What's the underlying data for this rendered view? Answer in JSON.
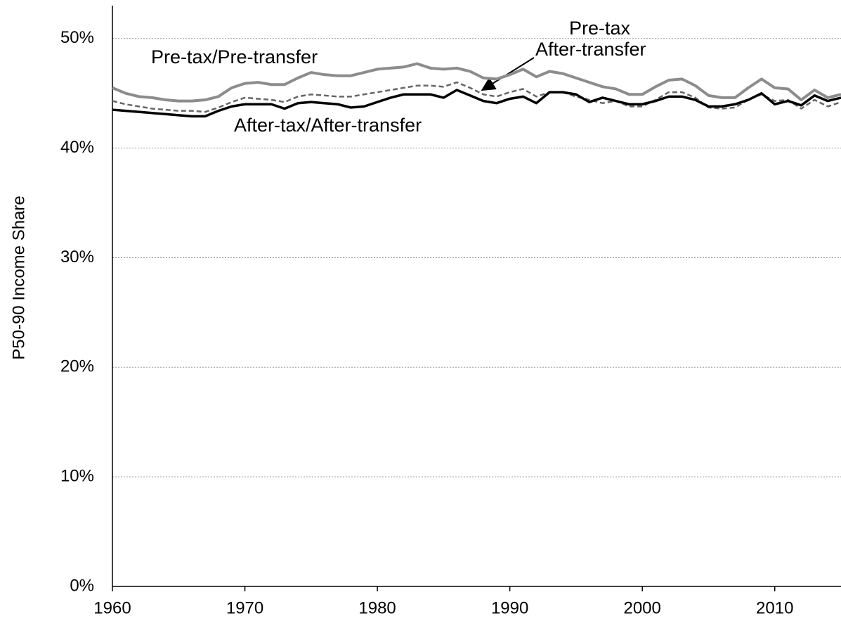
{
  "chart_data": {
    "type": "line",
    "y_label": "P50-90 Income Share",
    "x": [
      1960,
      1961,
      1962,
      1963,
      1964,
      1965,
      1966,
      1967,
      1968,
      1969,
      1970,
      1971,
      1972,
      1973,
      1974,
      1975,
      1976,
      1977,
      1978,
      1979,
      1980,
      1981,
      1982,
      1983,
      1984,
      1985,
      1986,
      1987,
      1988,
      1989,
      1990,
      1991,
      1992,
      1993,
      1994,
      1995,
      1996,
      1997,
      1998,
      1999,
      2000,
      2001,
      2002,
      2003,
      2004,
      2005,
      2006,
      2007,
      2008,
      2009,
      2010,
      2011,
      2012,
      2013,
      2014,
      2015
    ],
    "series": [
      {
        "color": "#8c8c8c",
        "style": "solid",
        "width": 4,
        "values": [
          45.5,
          45.0,
          44.7,
          44.6,
          44.4,
          44.3,
          44.3,
          44.4,
          44.7,
          45.5,
          45.9,
          46.0,
          45.8,
          45.8,
          46.4,
          46.9,
          46.7,
          46.6,
          46.6,
          46.9,
          47.2,
          47.3,
          47.4,
          47.7,
          47.3,
          47.2,
          47.3,
          47.0,
          46.4,
          46.3,
          46.7,
          47.2,
          46.5,
          47.0,
          46.8,
          46.4,
          46.0,
          45.6,
          45.4,
          44.9,
          44.9,
          45.6,
          46.2,
          46.3,
          45.7,
          44.8,
          44.6,
          44.6,
          45.5,
          46.3,
          45.5,
          45.4,
          44.4,
          45.3,
          44.6,
          44.9
        ]
      },
      {
        "color": "#666666",
        "style": "dashed",
        "width": 2.5,
        "values": [
          44.3,
          44.0,
          43.8,
          43.6,
          43.5,
          43.4,
          43.4,
          43.3,
          43.7,
          44.2,
          44.6,
          44.5,
          44.4,
          44.2,
          44.7,
          44.9,
          44.8,
          44.7,
          44.7,
          44.9,
          45.1,
          45.3,
          45.5,
          45.7,
          45.7,
          45.6,
          46.0,
          45.5,
          44.9,
          44.7,
          45.1,
          45.4,
          44.7,
          45.1,
          45.1,
          44.7,
          44.4,
          44.1,
          44.3,
          43.8,
          43.8,
          44.4,
          45.1,
          45.1,
          44.6,
          43.7,
          43.6,
          43.7,
          44.4,
          44.9,
          44.3,
          44.4,
          43.6,
          44.4,
          43.8,
          44.2
        ]
      },
      {
        "color": "#000000",
        "style": "solid",
        "width": 3.5,
        "values": [
          43.5,
          43.4,
          43.3,
          43.2,
          43.1,
          43.0,
          42.9,
          42.9,
          43.4,
          43.8,
          44.0,
          44.0,
          44.0,
          43.6,
          44.1,
          44.2,
          44.1,
          44.0,
          43.7,
          43.8,
          44.2,
          44.6,
          44.9,
          44.9,
          44.9,
          44.6,
          45.3,
          44.8,
          44.3,
          44.1,
          44.5,
          44.7,
          44.1,
          45.1,
          45.1,
          44.9,
          44.2,
          44.6,
          44.3,
          44.0,
          44.0,
          44.3,
          44.7,
          44.7,
          44.4,
          43.8,
          43.8,
          44.0,
          44.4,
          45.0,
          44.0,
          44.3,
          43.9,
          44.8,
          44.3,
          44.6
        ]
      }
    ],
    "annotations": [
      "Pre-tax/Pre-transfer",
      "Pre-tax",
      "After-transfer",
      "After-tax/After-transfer"
    ],
    "xlim": [
      1960,
      2015
    ],
    "xticks": [
      1960,
      1970,
      1980,
      1990,
      2000,
      2010
    ],
    "ylim": [
      0,
      53
    ],
    "yticks": [
      {
        "value": 0,
        "label": "0%"
      },
      {
        "value": 10,
        "label": "10%"
      },
      {
        "value": 20,
        "label": "20%"
      },
      {
        "value": 30,
        "label": "30%"
      },
      {
        "value": 40,
        "label": "40%"
      },
      {
        "value": 50,
        "label": "50%"
      }
    ],
    "grid": true
  }
}
